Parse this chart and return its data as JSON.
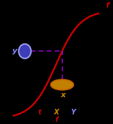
{
  "bg_color": "#000000",
  "curve_color": "#cc0000",
  "dashed_color": "#9900cc",
  "circle_color": "#4444cc",
  "circle_edge": "#aaaaff",
  "ellipse_color": "#cc8800",
  "ellipse_edge": "#cc6600",
  "label_y_color": "#8888ff",
  "label_x_color": "#cc8800",
  "label_f_color": "#cc0000",
  "label_legend_t_color": "#cc0000",
  "label_legend_X_color": "#cc8800",
  "label_legend_Y_color": "#8888ff",
  "label_legend_f_color": "#cc0000",
  "figsize": [
    1.65,
    1.8
  ],
  "dpi": 100,
  "title_f": "f",
  "legend_t": "t",
  "legend_X": "X",
  "legend_Y": "Y",
  "legend_f": "f"
}
